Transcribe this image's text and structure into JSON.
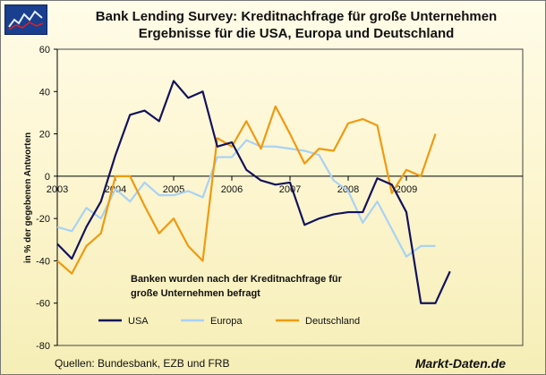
{
  "chart_data": {
    "type": "line",
    "title_line1": "Bank Lending Survey:  Kreditnachfrage für große Unternehmen",
    "title_line2": "Ergebnisse für die USA, Europa und Deutschland",
    "ylabel": "in % der gegebenen Antworten",
    "ylim": [
      -80,
      60
    ],
    "yticks": [
      -80,
      -60,
      -40,
      -20,
      0,
      20,
      40,
      60
    ],
    "year_labels": [
      "2003",
      "2004",
      "2005",
      "2006",
      "2007",
      "2008",
      "2009"
    ],
    "xlim": [
      0,
      32
    ],
    "annotation_line1": "Banken wurden nach der Kreditnachfrage für",
    "annotation_line2": "große Unternehmen befragt",
    "series": [
      {
        "name": "USA",
        "color": "#13135c",
        "values": [
          -32,
          -39,
          -24,
          -12,
          10,
          29,
          31,
          26,
          45,
          37,
          40,
          14,
          16,
          3,
          -2,
          -4,
          -3,
          -23,
          -20,
          -18,
          -17,
          -17,
          -1,
          -4,
          -17,
          -60,
          -60,
          -45
        ]
      },
      {
        "name": "Europa",
        "color": "#a9d2f4",
        "values": [
          -24,
          -26,
          -15,
          -20,
          -6,
          -12,
          -3,
          -9,
          -9,
          -7,
          -10,
          9,
          9,
          17,
          14,
          14,
          13,
          12,
          10,
          -2,
          -7,
          -22,
          -12,
          -25,
          -38,
          -33,
          -33
        ]
      },
      {
        "name": "Deutschland",
        "color": "#ef9a10",
        "values": [
          -40,
          -46,
          -33,
          -27,
          0,
          0,
          -14,
          -27,
          -20,
          -33,
          -40,
          18,
          14,
          26,
          13,
          33,
          20,
          6,
          13,
          12,
          25,
          27,
          24,
          -8,
          3,
          0,
          20
        ]
      }
    ]
  },
  "footer": {
    "source": "Quellen: Bundesbank, EZB und FRB",
    "brand": "Markt-Daten.de"
  }
}
